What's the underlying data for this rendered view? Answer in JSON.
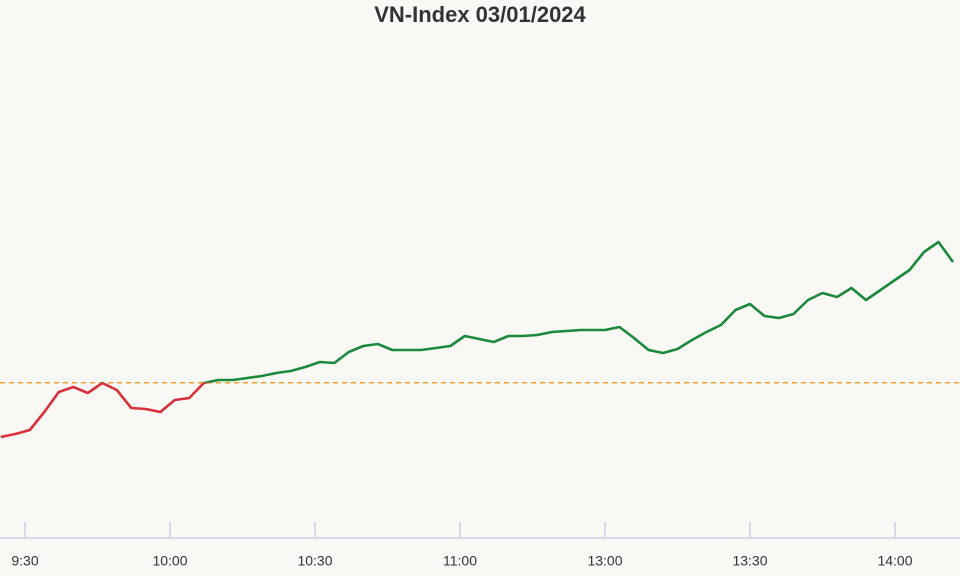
{
  "chart_data": {
    "type": "line",
    "title": "VN-Index 03/01/2024",
    "x": [
      "9:25",
      "9:28",
      "9:31",
      "9:34",
      "9:37",
      "9:40",
      "9:43",
      "9:46",
      "9:49",
      "9:52",
      "9:55",
      "9:58",
      "10:01",
      "10:04",
      "10:07",
      "10:10",
      "10:13",
      "10:16",
      "10:19",
      "10:22",
      "10:25",
      "10:28",
      "10:31",
      "10:34",
      "10:37",
      "10:40",
      "10:43",
      "10:46",
      "10:49",
      "10:52",
      "10:55",
      "10:58",
      "11:01",
      "11:04",
      "11:07",
      "11:10",
      "11:13",
      "11:16",
      "11:19",
      "11:22",
      "11:25",
      "11:28",
      "13:00",
      "13:03",
      "13:06",
      "13:09",
      "13:12",
      "13:15",
      "13:18",
      "13:21",
      "13:24",
      "13:27",
      "13:30",
      "13:33",
      "13:36",
      "13:39",
      "13:42",
      "13:45",
      "13:48",
      "13:51",
      "13:54",
      "13:57",
      "14:00",
      "14:03",
      "14:06",
      "14:09",
      "14:12"
    ],
    "values": [
      1124.5,
      1124.8,
      1125.2,
      1127.0,
      1129.0,
      1129.5,
      1128.9,
      1129.9,
      1129.2,
      1127.4,
      1127.3,
      1127.0,
      1128.2,
      1128.4,
      1129.9,
      1130.2,
      1130.2,
      1130.4,
      1130.6,
      1130.9,
      1131.1,
      1131.5,
      1132.0,
      1131.9,
      1133.0,
      1133.6,
      1133.8,
      1133.2,
      1133.2,
      1133.2,
      1133.4,
      1133.6,
      1134.6,
      1134.3,
      1134.0,
      1134.6,
      1134.6,
      1134.7,
      1135.0,
      1135.1,
      1135.2,
      1135.2,
      1135.2,
      1135.5,
      1134.4,
      1133.2,
      1132.9,
      1133.3,
      1134.2,
      1135.0,
      1135.7,
      1137.2,
      1137.8,
      1136.6,
      1136.4,
      1136.8,
      1138.2,
      1138.9,
      1138.5,
      1139.4,
      1138.2,
      1139.2,
      1140.2,
      1141.2,
      1143.0,
      1144.0,
      1142.0
    ],
    "reference": 1129.93,
    "color_up": "#1a8a3a",
    "color_down": "#d9303a",
    "reference_color": "#f0a030",
    "ylim": [
      1114.2,
      1165.2
    ],
    "xticks": [
      "9:30",
      "10:00",
      "10:30",
      "11:00",
      "13:00",
      "13:30",
      "14:00"
    ]
  }
}
